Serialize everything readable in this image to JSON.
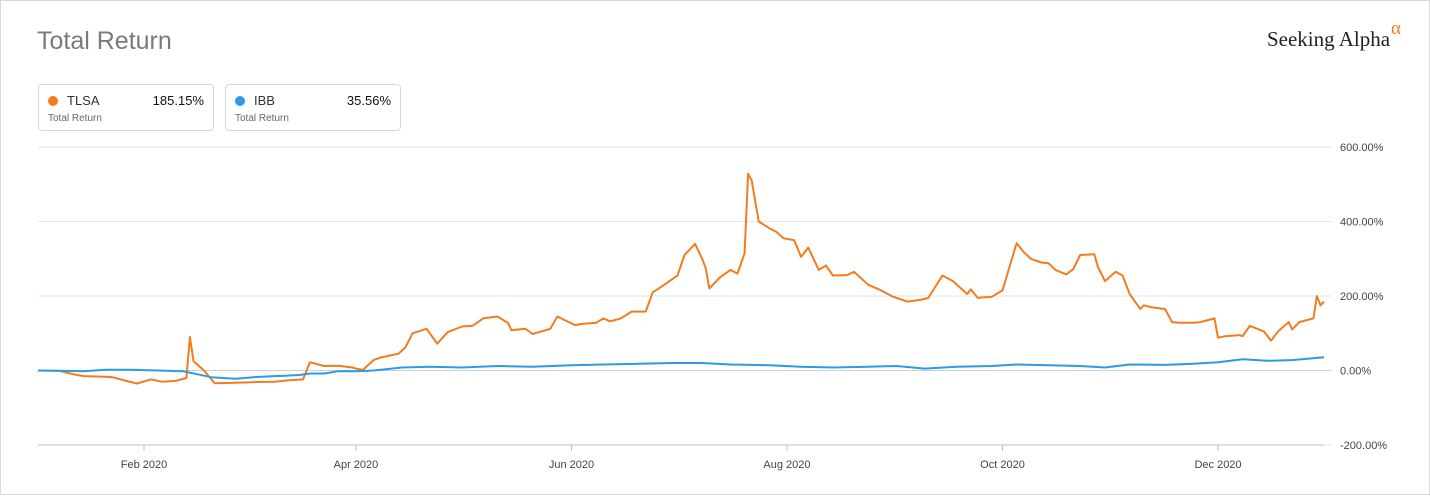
{
  "header": {
    "title": "Total Return",
    "brand": "Seeking Alpha",
    "brand_symbol": "α"
  },
  "legend": [
    {
      "ticker": "TLSA",
      "value": "185.15%",
      "sub": "Total Return",
      "color": "#f47c20"
    },
    {
      "ticker": "IBB",
      "value": "35.56%",
      "sub": "Total Return",
      "color": "#2b9be8"
    }
  ],
  "chart_data": {
    "type": "line",
    "title": "Total Return",
    "xlabel": "",
    "ylabel": "",
    "x_range": [
      "2020-01-02",
      "2020-12-31"
    ],
    "ylim": [
      -200,
      600
    ],
    "yticks": [
      600,
      400,
      200,
      0,
      -200
    ],
    "ytick_labels": [
      "600.00%",
      "400.00%",
      "200.00%",
      "0.00%",
      "-200.00%"
    ],
    "xticks": [
      "2020-02-01",
      "2020-04-01",
      "2020-06-01",
      "2020-08-01",
      "2020-10-01",
      "2020-12-01"
    ],
    "xtick_labels": [
      "Feb 2020",
      "Apr 2020",
      "Jun 2020",
      "Aug 2020",
      "Oct 2020",
      "Dec 2020"
    ],
    "grid": true,
    "series": [
      {
        "name": "TLSA",
        "color": "#f47c20",
        "points": [
          [
            "2020-01-02",
            0
          ],
          [
            "2020-01-08",
            -1
          ],
          [
            "2020-01-13",
            -12
          ],
          [
            "2020-01-15",
            -15
          ],
          [
            "2020-01-21",
            -17
          ],
          [
            "2020-01-23",
            -18
          ],
          [
            "2020-01-27",
            -28
          ],
          [
            "2020-01-30",
            -35
          ],
          [
            "2020-02-03",
            -24
          ],
          [
            "2020-02-06",
            -30
          ],
          [
            "2020-02-10",
            -28
          ],
          [
            "2020-02-13",
            -20
          ],
          [
            "2020-02-14",
            90
          ],
          [
            "2020-02-15",
            25
          ],
          [
            "2020-02-18",
            0
          ],
          [
            "2020-02-21",
            -34
          ],
          [
            "2020-02-27",
            -33
          ],
          [
            "2020-03-04",
            -31
          ],
          [
            "2020-03-09",
            -30
          ],
          [
            "2020-03-13",
            -26
          ],
          [
            "2020-03-17",
            -24
          ],
          [
            "2020-03-19",
            22
          ],
          [
            "2020-03-23",
            12
          ],
          [
            "2020-03-27",
            13
          ],
          [
            "2020-03-31",
            8
          ],
          [
            "2020-04-01",
            5
          ],
          [
            "2020-04-03",
            2
          ],
          [
            "2020-04-06",
            28
          ],
          [
            "2020-04-08",
            35
          ],
          [
            "2020-04-13",
            45
          ],
          [
            "2020-04-15",
            62
          ],
          [
            "2020-04-17",
            100
          ],
          [
            "2020-04-21",
            112
          ],
          [
            "2020-04-24",
            72
          ],
          [
            "2020-04-27",
            103
          ],
          [
            "2020-05-01",
            118
          ],
          [
            "2020-05-04",
            120
          ],
          [
            "2020-05-07",
            140
          ],
          [
            "2020-05-11",
            145
          ],
          [
            "2020-05-14",
            128
          ],
          [
            "2020-05-15",
            108
          ],
          [
            "2020-05-19",
            112
          ],
          [
            "2020-05-21",
            98
          ],
          [
            "2020-05-26",
            112
          ],
          [
            "2020-05-28",
            145
          ],
          [
            "2020-06-02",
            122
          ],
          [
            "2020-06-04",
            125
          ],
          [
            "2020-06-08",
            128
          ],
          [
            "2020-06-10",
            140
          ],
          [
            "2020-06-12",
            132
          ],
          [
            "2020-06-15",
            140
          ],
          [
            "2020-06-18",
            158
          ],
          [
            "2020-06-22",
            158
          ],
          [
            "2020-06-24",
            210
          ],
          [
            "2020-06-26",
            222
          ],
          [
            "2020-06-30",
            248
          ],
          [
            "2020-07-01",
            255
          ],
          [
            "2020-07-03",
            310
          ],
          [
            "2020-07-06",
            340
          ],
          [
            "2020-07-08",
            300
          ],
          [
            "2020-07-09",
            275
          ],
          [
            "2020-07-10",
            220
          ],
          [
            "2020-07-13",
            250
          ],
          [
            "2020-07-16",
            270
          ],
          [
            "2020-07-18",
            260
          ],
          [
            "2020-07-20",
            315
          ],
          [
            "2020-07-21",
            528
          ],
          [
            "2020-07-22",
            510
          ],
          [
            "2020-07-24",
            400
          ],
          [
            "2020-07-27",
            382
          ],
          [
            "2020-07-29",
            372
          ],
          [
            "2020-07-31",
            355
          ],
          [
            "2020-08-03",
            350
          ],
          [
            "2020-08-05",
            305
          ],
          [
            "2020-08-07",
            330
          ],
          [
            "2020-08-10",
            270
          ],
          [
            "2020-08-12",
            282
          ],
          [
            "2020-08-14",
            255
          ],
          [
            "2020-08-18",
            256
          ],
          [
            "2020-08-20",
            265
          ],
          [
            "2020-08-24",
            230
          ],
          [
            "2020-08-27",
            218
          ],
          [
            "2020-08-31",
            198
          ],
          [
            "2020-09-02",
            192
          ],
          [
            "2020-09-04",
            185
          ],
          [
            "2020-09-08",
            190
          ],
          [
            "2020-09-10",
            195
          ],
          [
            "2020-09-14",
            255
          ],
          [
            "2020-09-17",
            240
          ],
          [
            "2020-09-21",
            205
          ],
          [
            "2020-09-22",
            218
          ],
          [
            "2020-09-24",
            195
          ],
          [
            "2020-09-28",
            198
          ],
          [
            "2020-10-01",
            215
          ],
          [
            "2020-10-05",
            342
          ],
          [
            "2020-10-07",
            318
          ],
          [
            "2020-10-09",
            300
          ],
          [
            "2020-10-12",
            290
          ],
          [
            "2020-10-14",
            288
          ],
          [
            "2020-10-16",
            270
          ],
          [
            "2020-10-19",
            258
          ],
          [
            "2020-10-21",
            272
          ],
          [
            "2020-10-23",
            310
          ],
          [
            "2020-10-27",
            312
          ],
          [
            "2020-10-28",
            278
          ],
          [
            "2020-10-30",
            240
          ],
          [
            "2020-11-02",
            265
          ],
          [
            "2020-11-04",
            255
          ],
          [
            "2020-11-06",
            205
          ],
          [
            "2020-11-09",
            165
          ],
          [
            "2020-11-10",
            175
          ],
          [
            "2020-11-12",
            170
          ],
          [
            "2020-11-16",
            165
          ],
          [
            "2020-11-18",
            130
          ],
          [
            "2020-11-20",
            128
          ],
          [
            "2020-11-24",
            128
          ],
          [
            "2020-11-26",
            130
          ],
          [
            "2020-11-30",
            140
          ],
          [
            "2020-12-01",
            88
          ],
          [
            "2020-12-03",
            92
          ],
          [
            "2020-12-07",
            95
          ],
          [
            "2020-12-08",
            92
          ],
          [
            "2020-12-10",
            120
          ],
          [
            "2020-12-14",
            105
          ],
          [
            "2020-12-16",
            80
          ],
          [
            "2020-12-18",
            105
          ],
          [
            "2020-12-21",
            130
          ],
          [
            "2020-12-22",
            110
          ],
          [
            "2020-12-24",
            130
          ],
          [
            "2020-12-28",
            140
          ],
          [
            "2020-12-29",
            200
          ],
          [
            "2020-12-30",
            175
          ],
          [
            "2020-12-31",
            185.15
          ]
        ]
      },
      {
        "name": "IBB",
        "color": "#2b9be8",
        "points": [
          [
            "2020-01-02",
            0
          ],
          [
            "2020-01-10",
            -1
          ],
          [
            "2020-01-15",
            -2
          ],
          [
            "2020-01-21",
            2
          ],
          [
            "2020-01-28",
            2
          ],
          [
            "2020-02-05",
            0
          ],
          [
            "2020-02-12",
            -2
          ],
          [
            "2020-02-20",
            -18
          ],
          [
            "2020-02-27",
            -22
          ],
          [
            "2020-03-03",
            -18
          ],
          [
            "2020-03-09",
            -15
          ],
          [
            "2020-03-12",
            -14
          ],
          [
            "2020-03-16",
            -12
          ],
          [
            "2020-03-19",
            -8
          ],
          [
            "2020-03-23",
            -8
          ],
          [
            "2020-03-27",
            -2
          ],
          [
            "2020-04-01",
            -2
          ],
          [
            "2020-04-06",
            0
          ],
          [
            "2020-04-14",
            8
          ],
          [
            "2020-04-22",
            10
          ],
          [
            "2020-05-01",
            8
          ],
          [
            "2020-05-11",
            12
          ],
          [
            "2020-05-21",
            10
          ],
          [
            "2020-06-01",
            14
          ],
          [
            "2020-06-10",
            16
          ],
          [
            "2020-06-20",
            18
          ],
          [
            "2020-06-30",
            20
          ],
          [
            "2020-07-08",
            20
          ],
          [
            "2020-07-16",
            16
          ],
          [
            "2020-07-27",
            14
          ],
          [
            "2020-08-05",
            10
          ],
          [
            "2020-08-14",
            8
          ],
          [
            "2020-08-24",
            10
          ],
          [
            "2020-09-01",
            12
          ],
          [
            "2020-09-09",
            5
          ],
          [
            "2020-09-18",
            10
          ],
          [
            "2020-09-28",
            12
          ],
          [
            "2020-10-05",
            16
          ],
          [
            "2020-10-14",
            14
          ],
          [
            "2020-10-23",
            12
          ],
          [
            "2020-10-30",
            8
          ],
          [
            "2020-11-06",
            16
          ],
          [
            "2020-11-16",
            15
          ],
          [
            "2020-11-24",
            18
          ],
          [
            "2020-12-01",
            22
          ],
          [
            "2020-12-08",
            30
          ],
          [
            "2020-12-15",
            26
          ],
          [
            "2020-12-22",
            28
          ],
          [
            "2020-12-31",
            35.56
          ]
        ]
      }
    ]
  }
}
